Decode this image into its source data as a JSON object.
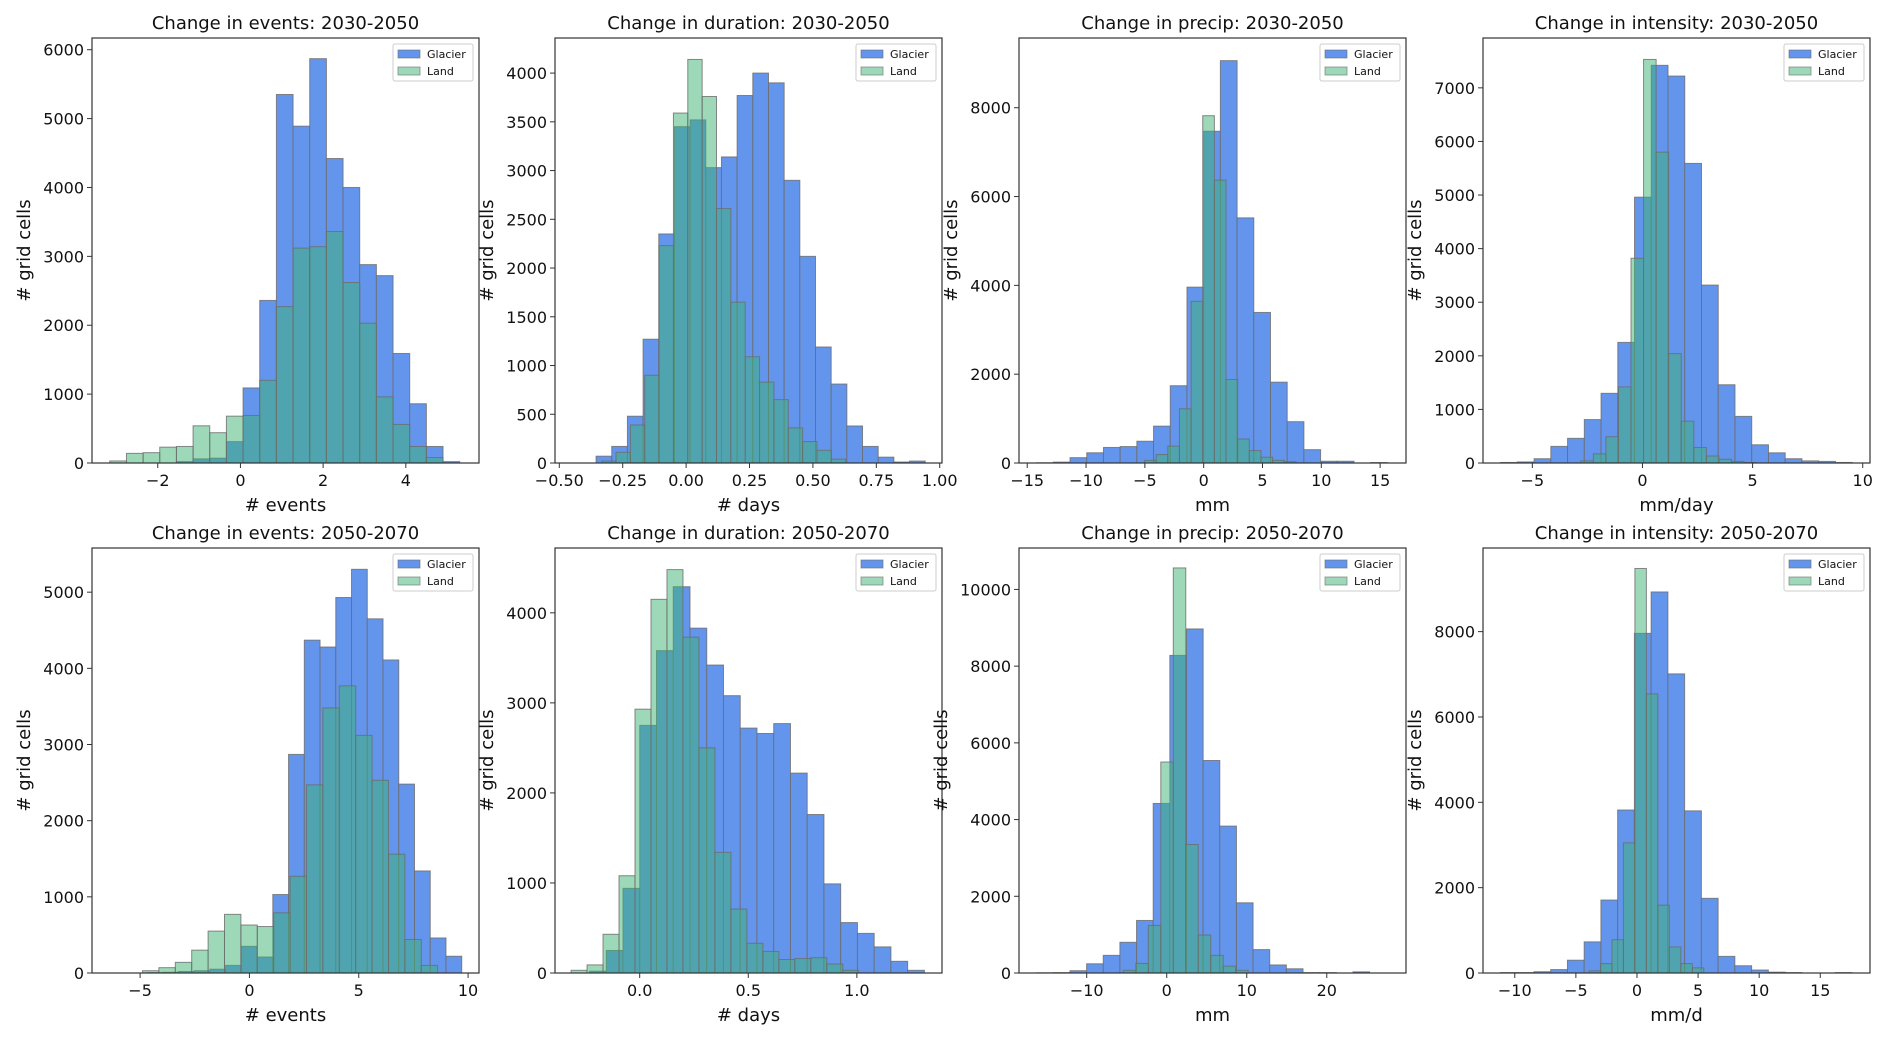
{
  "colors": {
    "glacier": "#6495ED",
    "land": "#3CB371",
    "edge": "#6b6b6b",
    "axis": "#333333"
  },
  "chart_data": [
    {
      "type": "bar",
      "subtype": "histogram",
      "title": "Change in events: 2030-2050",
      "xlabel": "# events",
      "ylabel": "# grid cells",
      "xlim": [
        -3.59,
        5.77
      ],
      "ylim": [
        0,
        6170
      ],
      "xticks": [
        -2,
        0,
        2,
        4
      ],
      "xtick_labels": [
        "−2",
        "0",
        "2",
        "4"
      ],
      "yticks": [
        0,
        1000,
        2000,
        3000,
        4000,
        5000,
        6000
      ],
      "ytick_labels": [
        "0",
        "1000",
        "2000",
        "3000",
        "4000",
        "5000",
        "6000"
      ],
      "legend": {
        "position": "top-right",
        "entries": [
          "Glacier",
          "Land"
        ]
      },
      "series": [
        {
          "name": "Glacier",
          "bin_start": -3.16,
          "bin_width": 0.403,
          "counts": [
            0,
            0,
            0,
            0,
            20,
            60,
            70,
            310,
            1090,
            2360,
            5350,
            4890,
            5870,
            4420,
            4000,
            2880,
            2720,
            1590,
            860,
            240,
            20
          ]
        },
        {
          "name": "Land",
          "bin_start": -3.16,
          "bin_width": 0.403,
          "counts": [
            30,
            140,
            150,
            230,
            240,
            540,
            440,
            680,
            690,
            1200,
            2270,
            3120,
            3140,
            3360,
            2620,
            2030,
            960,
            560,
            240,
            80,
            0
          ]
        }
      ]
    },
    {
      "type": "bar",
      "subtype": "histogram",
      "title": "Change in duration: 2030-2050",
      "xlabel": "# days",
      "ylabel": "# grid cells",
      "xlim": [
        -0.517,
        1.009
      ],
      "ylim": [
        0,
        4360
      ],
      "xticks": [
        -0.5,
        -0.25,
        0,
        0.25,
        0.5,
        0.75,
        1.0
      ],
      "xtick_labels": [
        "−0.50",
        "−0.25",
        "0.00",
        "0.25",
        "0.50",
        "0.75",
        "1.00"
      ],
      "yticks": [
        0,
        500,
        1000,
        1500,
        2000,
        2500,
        3000,
        3500,
        4000
      ],
      "ytick_labels": [
        "0",
        "500",
        "1000",
        "1500",
        "2000",
        "2500",
        "3000",
        "3500",
        "4000"
      ],
      "legend": {
        "position": "top-right",
        "entries": [
          "Glacier",
          "Land"
        ]
      },
      "series": [
        {
          "name": "Glacier",
          "bin_start": -0.355,
          "bin_width": 0.0618,
          "counts": [
            70,
            170,
            480,
            1270,
            2350,
            3450,
            3520,
            3030,
            3140,
            3770,
            4000,
            3900,
            2900,
            2120,
            1190,
            810,
            380,
            170,
            60,
            10,
            20
          ]
        },
        {
          "name": "Land",
          "bin_start": -0.333,
          "bin_width": 0.0566,
          "counts": [
            20,
            110,
            390,
            900,
            2230,
            3590,
            4140,
            3760,
            2610,
            1650,
            1090,
            830,
            650,
            360,
            220,
            130,
            40
          ]
        }
      ]
    },
    {
      "type": "bar",
      "subtype": "histogram",
      "title": "Change in precip: 2030-2050",
      "xlabel": "mm",
      "ylabel": "# grid cells",
      "xlim": [
        -15.7,
        17.2
      ],
      "ylim": [
        0,
        9570
      ],
      "xticks": [
        -15,
        -10,
        -5,
        0,
        5,
        10,
        15
      ],
      "xtick_labels": [
        "−15",
        "−10",
        "−5",
        "0",
        "5",
        "10",
        "15"
      ],
      "yticks": [
        0,
        2000,
        4000,
        6000,
        8000
      ],
      "ytick_labels": [
        "0",
        "2000",
        "4000",
        "6000",
        "8000"
      ],
      "legend": {
        "position": "top-right",
        "entries": [
          "Glacier",
          "Land"
        ]
      },
      "series": [
        {
          "name": "Glacier",
          "bin_start": -14.2,
          "bin_width": 1.42,
          "counts": [
            5,
            20,
            120,
            230,
            350,
            370,
            490,
            830,
            1740,
            3960,
            7470,
            9060,
            5520,
            3390,
            1820,
            930,
            300,
            40,
            40,
            0,
            10
          ]
        },
        {
          "name": "Land",
          "bin_start": -5.03,
          "bin_width": 0.99,
          "counts": [
            60,
            190,
            380,
            1220,
            3640,
            7820,
            6370,
            1880,
            540,
            280,
            130,
            60,
            30
          ]
        }
      ]
    },
    {
      "type": "bar",
      "subtype": "histogram",
      "title": "Change in intensity: 2030-2050",
      "xlabel": "mm/day",
      "ylabel": "# grid cells",
      "xlim": [
        -7.24,
        10.33
      ],
      "ylim": [
        0,
        7930
      ],
      "xticks": [
        -5,
        0,
        5,
        10
      ],
      "xtick_labels": [
        "−5",
        "0",
        "5",
        "10"
      ],
      "yticks": [
        0,
        1000,
        2000,
        3000,
        4000,
        5000,
        6000,
        7000
      ],
      "ytick_labels": [
        "0",
        "1000",
        "2000",
        "3000",
        "4000",
        "5000",
        "6000",
        "7000"
      ],
      "legend": {
        "position": "top-right",
        "entries": [
          "Glacier",
          "Land"
        ]
      },
      "series": [
        {
          "name": "Glacier",
          "bin_start": -6.44,
          "bin_width": 0.76,
          "counts": [
            10,
            20,
            80,
            310,
            460,
            810,
            1300,
            2250,
            4960,
            7420,
            7220,
            5590,
            3320,
            1460,
            870,
            340,
            190,
            80,
            40,
            30,
            10
          ]
        },
        {
          "name": "Land",
          "bin_start": -2.8,
          "bin_width": 0.57,
          "counts": [
            40,
            170,
            490,
            1420,
            3820,
            7530,
            5800,
            2040,
            780,
            290,
            130,
            70,
            30,
            10
          ]
        }
      ]
    },
    {
      "type": "bar",
      "subtype": "histogram",
      "title": "Change in events: 2050-2070",
      "xlabel": "# events",
      "ylabel": "# grid cells",
      "xlim": [
        -7.2,
        10.5
      ],
      "ylim": [
        0,
        5580
      ],
      "xticks": [
        -5,
        0,
        5,
        10
      ],
      "xtick_labels": [
        "−5",
        "0",
        "5",
        "10"
      ],
      "yticks": [
        0,
        1000,
        2000,
        3000,
        4000,
        5000
      ],
      "ytick_labels": [
        "0",
        "1000",
        "2000",
        "3000",
        "4000",
        "5000"
      ],
      "legend": {
        "position": "top-right",
        "entries": [
          "Glacier",
          "Land"
        ]
      },
      "series": [
        {
          "name": "Glacier",
          "bin_start": -5.41,
          "bin_width": 0.72,
          "counts": [
            0,
            5,
            10,
            20,
            30,
            50,
            100,
            350,
            210,
            1030,
            2870,
            4370,
            4280,
            4930,
            5300,
            4650,
            4110,
            2480,
            1340,
            460,
            220
          ]
        },
        {
          "name": "Land",
          "bin_start": -4.89,
          "bin_width": 0.75,
          "counts": [
            30,
            70,
            140,
            300,
            550,
            770,
            630,
            610,
            790,
            1270,
            2470,
            3480,
            3770,
            3120,
            2530,
            1560,
            440,
            100
          ]
        }
      ]
    },
    {
      "type": "bar",
      "subtype": "histogram",
      "title": "Change in duration: 2050-2070",
      "xlabel": "# days",
      "ylabel": "# grid cells",
      "xlim": [
        -0.39,
        1.392
      ],
      "ylim": [
        0,
        4720
      ],
      "xticks": [
        0,
        0.5,
        1.0
      ],
      "xtick_labels": [
        "0.0",
        "0.5",
        "1.0"
      ],
      "yticks": [
        0,
        1000,
        2000,
        3000,
        4000
      ],
      "ytick_labels": [
        "0",
        "1000",
        "2000",
        "3000",
        "4000"
      ],
      "legend": {
        "position": "top-right",
        "entries": [
          "Glacier",
          "Land"
        ]
      },
      "series": [
        {
          "name": "Glacier",
          "bin_start": -0.231,
          "bin_width": 0.0771,
          "counts": [
            20,
            250,
            940,
            2750,
            3580,
            4290,
            3830,
            3420,
            3080,
            2720,
            2660,
            2770,
            2220,
            1760,
            990,
            560,
            440,
            290,
            130,
            30
          ]
        },
        {
          "name": "Land",
          "bin_start": -0.316,
          "bin_width": 0.0736,
          "counts": [
            30,
            90,
            430,
            1080,
            2930,
            4150,
            4480,
            3730,
            2500,
            1340,
            710,
            330,
            240,
            150,
            160,
            170,
            100,
            30
          ]
        }
      ]
    },
    {
      "type": "bar",
      "subtype": "histogram",
      "title": "Change in precip: 2050-2070",
      "xlabel": "mm",
      "ylabel": "# grid cells",
      "xlim": [
        -18.46,
        29.9
      ],
      "ylim": [
        0,
        11080
      ],
      "xticks": [
        -10,
        0,
        10,
        20
      ],
      "xtick_labels": [
        "−10",
        "0",
        "10",
        "20"
      ],
      "yticks": [
        0,
        2000,
        4000,
        6000,
        8000,
        10000
      ],
      "ytick_labels": [
        "0",
        "2000",
        "4000",
        "6000",
        "8000",
        "10000"
      ],
      "legend": {
        "position": "top-right",
        "entries": [
          "Glacier",
          "Land"
        ]
      },
      "series": [
        {
          "name": "Glacier",
          "bin_start": -16.25,
          "bin_width": 2.08,
          "counts": [
            5,
            10,
            60,
            240,
            460,
            800,
            1370,
            4420,
            8280,
            8970,
            5540,
            3830,
            1830,
            610,
            210,
            110,
            10,
            10,
            0,
            30
          ]
        },
        {
          "name": "Land",
          "bin_start": -5.42,
          "bin_width": 1.56,
          "counts": [
            70,
            250,
            1240,
            5500,
            10560,
            3350,
            990,
            460,
            180,
            70
          ]
        }
      ]
    },
    {
      "type": "bar",
      "subtype": "histogram",
      "title": "Change in intensity: 2050-2070",
      "xlabel": "mm/d",
      "ylabel": "# grid cells",
      "xlim": [
        -12.6,
        19.07
      ],
      "ylim": [
        0,
        9960
      ],
      "xticks": [
        -10,
        -5,
        0,
        5,
        10,
        15
      ],
      "xtick_labels": [
        "−10",
        "−5",
        "0",
        "5",
        "10",
        "15"
      ],
      "yticks": [
        0,
        2000,
        4000,
        6000,
        8000
      ],
      "ytick_labels": [
        "0",
        "2000",
        "4000",
        "6000",
        "8000"
      ],
      "legend": {
        "position": "top-right",
        "entries": [
          "Glacier",
          "Land"
        ]
      },
      "series": [
        {
          "name": "Glacier",
          "bin_start": -11.17,
          "bin_width": 1.37,
          "counts": [
            10,
            10,
            30,
            80,
            300,
            730,
            1710,
            3820,
            7960,
            8930,
            7010,
            3800,
            1750,
            390,
            170,
            70,
            20,
            10,
            0,
            0,
            10
          ]
        },
        {
          "name": "Land",
          "bin_start": -3.93,
          "bin_width": 0.94,
          "counts": [
            50,
            220,
            780,
            3050,
            9480,
            6540,
            1590,
            610,
            220,
            120
          ]
        }
      ]
    }
  ]
}
